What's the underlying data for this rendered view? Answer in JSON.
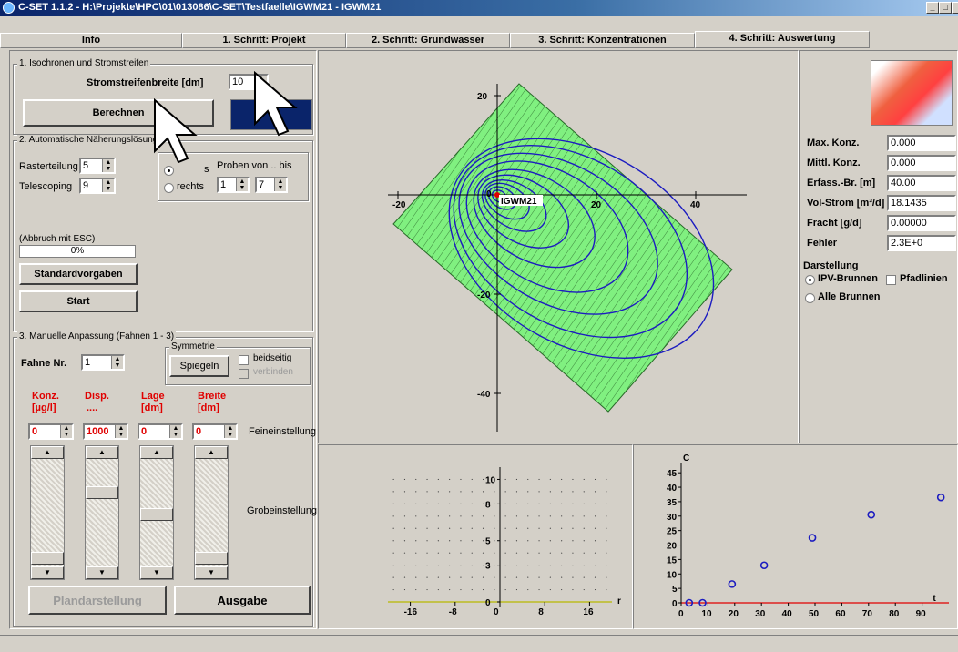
{
  "window": {
    "title": "C-SET 1.1.2 - H:\\Projekte\\HPC\\01\\013086\\C-SET\\Testfaelle\\IGWM21 - IGWM21"
  },
  "tabs": [
    {
      "label": "Info"
    },
    {
      "label": "1. Schritt: Projekt"
    },
    {
      "label": "2. Schritt: Grundwasser"
    },
    {
      "label": "3. Schritt: Konzentrationen"
    },
    {
      "label": "4. Schritt: Auswertung",
      "active": true
    }
  ],
  "section1": {
    "title": "1. Isochronen und Stromstreifen",
    "stromstreifen_label": "Stromstreifenbreite [dm]",
    "stromstreifen_value": "10",
    "berechnen": "Berechnen"
  },
  "section2": {
    "title": "2. Automatische Näherungslösung (",
    "rasterteilung_label": "Rasterteilung",
    "rasterteilung_value": "5",
    "telescoping_label": "Telescoping",
    "telescoping_value": "9",
    "radio_links": "s",
    "radio_rechts": "rechts",
    "proben_label": "Proben von .. bis",
    "proben_von": "1",
    "proben_bis": "7",
    "abbruch": "(Abbruch mit ESC)",
    "progress": "0%",
    "progress_value": 0,
    "standardvorgaben": "Standardvorgaben",
    "start": "Start"
  },
  "section3": {
    "title": "3. Manuelle Anpassung (Fahnen 1 - 3)",
    "fahne_label": "Fahne Nr.",
    "fahne_value": "1",
    "symmetrie_title": "Symmetrie",
    "spiegeln": "Spiegeln",
    "beidseitig": "beidseitig",
    "verbinden": "verbinden",
    "columns": [
      {
        "line1": "Konz.",
        "line2": "[µg/l]",
        "value": "0"
      },
      {
        "line1": "Disp.",
        "line2": "....",
        "value": "1000"
      },
      {
        "line1": "Lage",
        "line2": "[dm]",
        "value": "0"
      },
      {
        "line1": "Breite",
        "line2": "[dm]",
        "value": "0"
      }
    ],
    "feineinstellung": "Feineinstellung",
    "grobeinstellung": "Grobeinstellung",
    "plandarstellung": "Plandarstellung",
    "ausgabe": "Ausgabe"
  },
  "results": {
    "rows": [
      {
        "label": "Max. Konz.",
        "value": "0.000"
      },
      {
        "label": "Mittl. Konz.",
        "value": "0.000"
      },
      {
        "label": "Erfass.-Br. [m]",
        "value": "40.00"
      },
      {
        "label": "Vol-Strom [m³/d]",
        "value": "18.1435"
      },
      {
        "label": "Fracht [g/d]",
        "value": "0.00000"
      },
      {
        "label": "Fehler",
        "value": "2.3E+0"
      }
    ],
    "darstellung_title": "Darstellung",
    "ipv_brunnen": "IPV-Brunnen",
    "pfadlinien": "Pfadlinien",
    "alle_brunnen": "Alle Brunnen"
  },
  "colors": {
    "green": "#80f080",
    "blue": "#1c1cc0",
    "red": "#e00000",
    "accent": "#0a246a"
  },
  "chart_data": [
    {
      "type": "other",
      "well_label": "IGWM21",
      "x_ticks": [
        -20,
        0,
        20,
        40
      ],
      "y_ticks": [
        20,
        0,
        -20,
        -40
      ],
      "xlim": [
        -24,
        48
      ],
      "ylim": [
        -48,
        23
      ]
    },
    {
      "type": "scatter",
      "x_ticks": [
        -16,
        -8,
        0,
        8,
        16
      ],
      "y_ticks": [
        10,
        8,
        5,
        3,
        0
      ],
      "xlabel": "r",
      "xlim": [
        -20,
        20
      ],
      "ylim": [
        0,
        11
      ],
      "grid": "dots"
    },
    {
      "type": "scatter",
      "ylabel": "C",
      "xlabel": "t",
      "x_ticks": [
        0,
        10,
        20,
        30,
        40,
        50,
        60,
        70,
        80,
        90
      ],
      "y_ticks": [
        0,
        5,
        10,
        15,
        20,
        25,
        30,
        35,
        40,
        45
      ],
      "xlim": [
        0,
        100
      ],
      "ylim": [
        0,
        46
      ],
      "points": [
        [
          3,
          0
        ],
        [
          8,
          0
        ],
        [
          19,
          6.5
        ],
        [
          31,
          13
        ],
        [
          49,
          22.5
        ],
        [
          71,
          30.5
        ],
        [
          97,
          36.5
        ]
      ]
    }
  ]
}
